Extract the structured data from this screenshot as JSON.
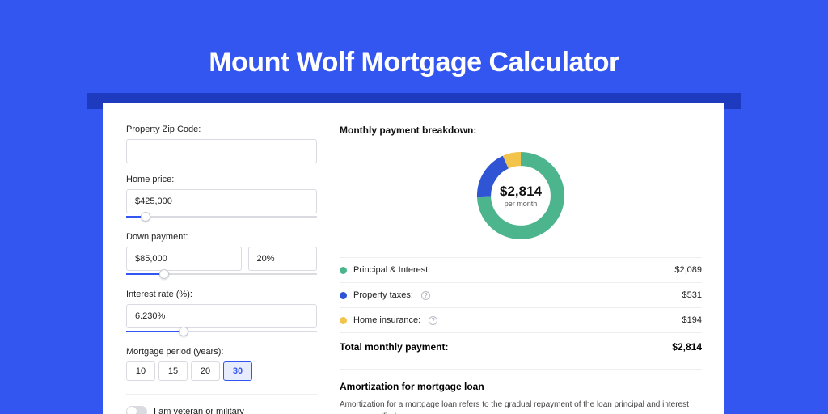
{
  "page": {
    "title": "Mount Wolf Mortgage Calculator",
    "background_color": "#3456f0",
    "darkbar_color": "#1e3bbf",
    "card_color": "#ffffff"
  },
  "form": {
    "zip": {
      "label": "Property Zip Code:",
      "value": ""
    },
    "home_price": {
      "label": "Home price:",
      "value": "$425,000",
      "slider_pct": 10
    },
    "down_payment": {
      "label": "Down payment:",
      "value": "$85,000",
      "pct": "20%",
      "slider_pct": 20
    },
    "interest_rate": {
      "label": "Interest rate (%):",
      "value": "6.230%",
      "slider_pct": 30
    },
    "period": {
      "label": "Mortgage period (years):",
      "options": [
        "10",
        "15",
        "20",
        "30"
      ],
      "selected": "30"
    },
    "veteran": {
      "label": "I am veteran or military",
      "on": false
    }
  },
  "breakdown": {
    "title": "Monthly payment breakdown:",
    "center_value": "$2,814",
    "center_sub": "per month",
    "donut": {
      "type": "donut",
      "ring_width": 15,
      "slices": [
        {
          "name": "principal_interest",
          "value": 2089,
          "pct": 74.2,
          "color": "#4db58e"
        },
        {
          "name": "property_taxes",
          "value": 531,
          "pct": 18.9,
          "color": "#2f55d4"
        },
        {
          "name": "home_insurance",
          "value": 194,
          "pct": 6.9,
          "color": "#f3c44c"
        }
      ]
    },
    "rows": [
      {
        "label": "Principal & Interest:",
        "value": "$2,089",
        "color": "#4db58e",
        "has_info": false
      },
      {
        "label": "Property taxes:",
        "value": "$531",
        "color": "#2f55d4",
        "has_info": true
      },
      {
        "label": "Home insurance:",
        "value": "$194",
        "color": "#f3c44c",
        "has_info": true
      }
    ],
    "total": {
      "label": "Total monthly payment:",
      "value": "$2,814"
    }
  },
  "amortization": {
    "title": "Amortization for mortgage loan",
    "text": "Amortization for a mortgage loan refers to the gradual repayment of the loan principal and interest over a specified"
  },
  "style": {
    "border_color": "#d9dbe0",
    "divider_color": "#eceef2",
    "text_color": "#222222"
  }
}
